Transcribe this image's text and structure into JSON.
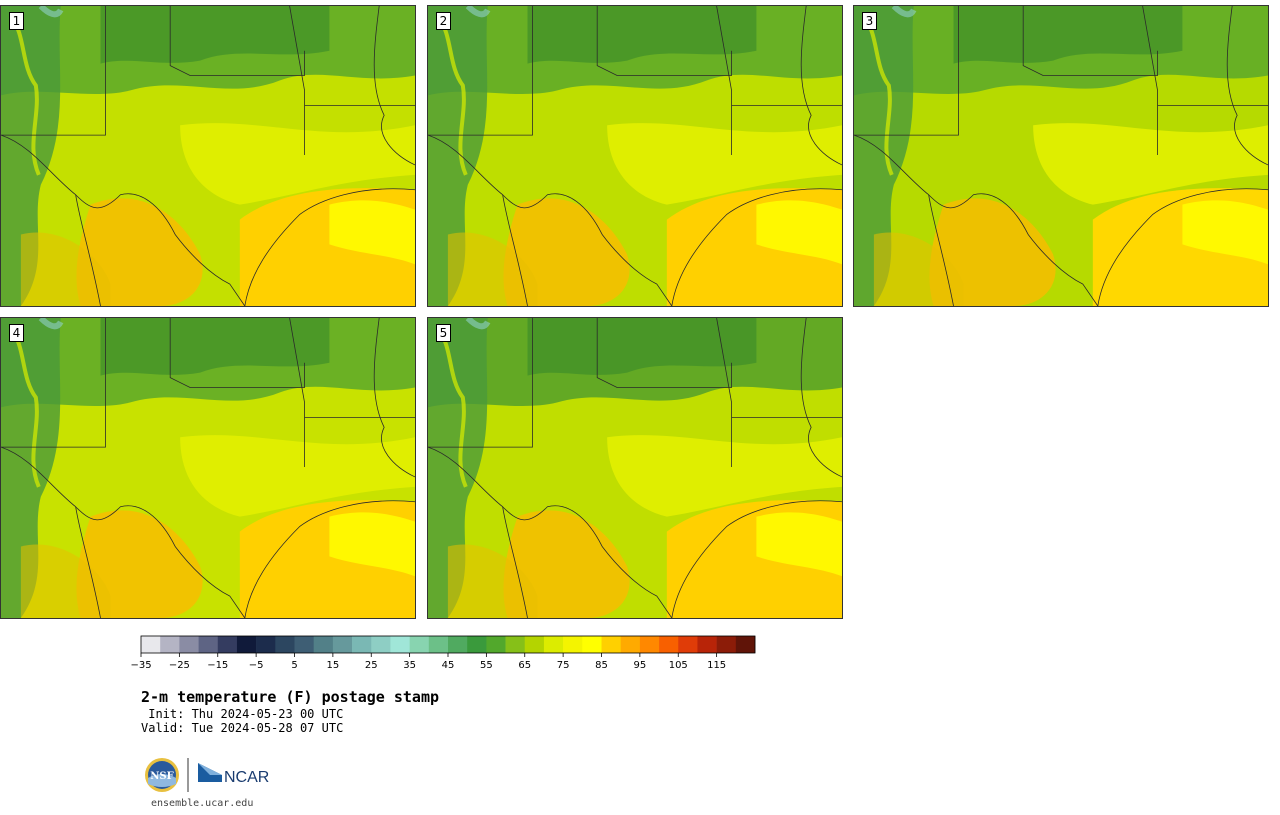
{
  "product": {
    "title": "2-m temperature (F) postage stamp",
    "init_text": " Init: Thu 2024-05-23 00 UTC",
    "valid_text": "Valid: Tue 2024-05-28 07 UTC",
    "url": "ensemble.ucar.edu"
  },
  "members": [
    {
      "id": "1",
      "label": "1",
      "base": "#c4e000",
      "north": "#5aa82a",
      "gulf": "#ffd000"
    },
    {
      "id": "2",
      "label": "2",
      "base": "#bede00",
      "north": "#5aa82a",
      "gulf": "#ffd000"
    },
    {
      "id": "3",
      "label": "3",
      "base": "#b6da00",
      "north": "#5aa82a",
      "gulf": "#ffd800"
    },
    {
      "id": "4",
      "label": "4",
      "base": "#c8e200",
      "north": "#5aa82a",
      "gulf": "#ffd000"
    },
    {
      "id": "5",
      "label": "5",
      "base": "#c0de00",
      "north": "#52a02a",
      "gulf": "#ffd000"
    }
  ],
  "colorbar": {
    "colors": [
      "#e8e8ec",
      "#b4b4c4",
      "#8a8ca4",
      "#5e6484",
      "#343c60",
      "#101a3a",
      "#1c2c4c",
      "#2c4660",
      "#3e5e74",
      "#528088",
      "#66999c",
      "#7ab8b4",
      "#8ecec4",
      "#a0e6d8",
      "#88d4b0",
      "#6cc088",
      "#50aa60",
      "#3a9a3c",
      "#52a82c",
      "#86c018",
      "#b4d400",
      "#dcec00",
      "#f4f400",
      "#ffff00",
      "#ffd000",
      "#ffaa00",
      "#ff8800",
      "#f86000",
      "#e03c08",
      "#b82408",
      "#8c1c08",
      "#601408"
    ],
    "tick_labels": [
      "−35",
      "−25",
      "−15",
      "−5",
      "5",
      "15",
      "25",
      "35",
      "45",
      "55",
      "65",
      "75",
      "85",
      "95",
      "105",
      "115"
    ]
  },
  "logos": {
    "nsf_text": "NSF",
    "ncar_text": "NCAR"
  }
}
